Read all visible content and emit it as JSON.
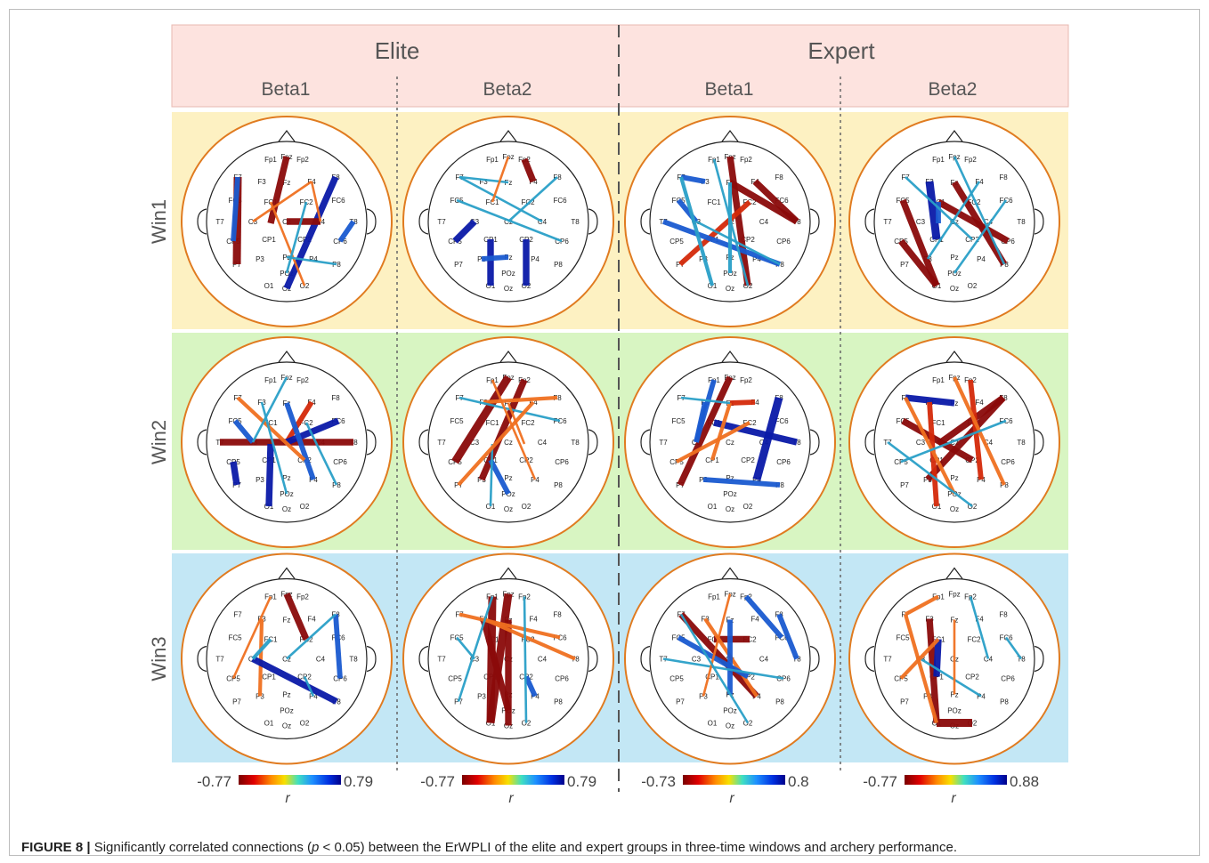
{
  "groups": [
    "Elite",
    "Expert"
  ],
  "bands": [
    "Beta1",
    "Beta2",
    "Beta1",
    "Beta2"
  ],
  "windows": [
    "Win1",
    "Win2",
    "Win3"
  ],
  "colors": {
    "header_bg": "#fde3df",
    "win1_bg": "#fdf1c2",
    "win2_bg": "#d8f5c2",
    "win3_bg": "#c3e7f5",
    "head_outline": "#e07b20",
    "strong_red": "#8b0a0a",
    "red": "#d42a0a",
    "orange": "#f07020",
    "cyan": "#2aa0c8",
    "blue": "#1a5ad0",
    "strong_blue": "#0a1aa8"
  },
  "electrode_labels": [
    "Fp1",
    "Fpz",
    "Fp2",
    "F7",
    "F3",
    "Fz",
    "F4",
    "F8",
    "FC5",
    "FC1",
    "FC2",
    "FC6",
    "T7",
    "C3",
    "Cz",
    "C4",
    "T8",
    "CP5",
    "CP1",
    "CP2",
    "CP6",
    "P7",
    "P3",
    "Pz",
    "P4",
    "P8",
    "POz",
    "O1",
    "Oz",
    "O2"
  ],
  "colorbars": [
    {
      "min": "-0.77",
      "max": "0.79",
      "label": "r"
    },
    {
      "min": "-0.77",
      "max": "0.79",
      "label": "r"
    },
    {
      "min": "-0.73",
      "max": "0.8",
      "label": "r"
    },
    {
      "min": "-0.77",
      "max": "0.88",
      "label": "r"
    }
  ],
  "caption": {
    "prefix": "FIGURE 8 |",
    "text_a": " Significantly correlated connections (",
    "p": "p",
    "text_b": " < 0.05) between the ErWPLI of the elite and expert groups in three-time windows and archery performance."
  },
  "connections": [
    [
      [
        [
          "F7",
          "P7",
          0,
          5
        ],
        [
          "Fpz",
          "C1",
          0,
          4
        ],
        [
          "F7",
          "CP5",
          1,
          3
        ],
        [
          "C3",
          "F4",
          2,
          1
        ],
        [
          "F8",
          "Oz",
          1,
          4
        ],
        [
          "T8",
          "CP6",
          1,
          3
        ],
        [
          "FC1",
          "O2",
          2,
          1
        ],
        [
          "C4",
          "Cz",
          0,
          4
        ],
        [
          "Pz",
          "P8",
          3,
          1
        ],
        [
          "FC2",
          "POz",
          3,
          1
        ],
        [
          "F4",
          "C4",
          2,
          1
        ]
      ],
      [
        [
          "Fp2",
          "F4",
          0,
          4
        ],
        [
          "F7",
          "C4",
          3,
          1
        ],
        [
          "F7",
          "Fz",
          3,
          1
        ],
        [
          "FC5",
          "CP6",
          3,
          1
        ],
        [
          "F8",
          "Cz",
          3,
          1
        ],
        [
          "CP5",
          "C3",
          1,
          4
        ],
        [
          "CP1",
          "O1",
          1,
          4
        ],
        [
          "P3",
          "Pz",
          1,
          3
        ],
        [
          "CP2",
          "O2",
          1,
          4
        ],
        [
          "Fpz",
          "FC1",
          2,
          1
        ]
      ],
      [
        [
          "Fpz",
          "O2",
          0,
          4
        ],
        [
          "F7",
          "F3",
          1,
          3
        ],
        [
          "T8",
          "Fz",
          0,
          4
        ],
        [
          "F4",
          "T8",
          0,
          4
        ],
        [
          "P7",
          "FC2",
          0,
          3
        ],
        [
          "T7",
          "P8",
          1,
          3
        ],
        [
          "FC5",
          "C3",
          1,
          3
        ],
        [
          "Fz",
          "POz",
          1,
          2
        ],
        [
          "F7",
          "O1",
          1,
          2
        ],
        [
          "Fp1",
          "O2",
          3,
          1
        ],
        [
          "C3",
          "P8",
          3,
          1
        ]
      ],
      [
        [
          "F3",
          "CP1",
          1,
          5
        ],
        [
          "FC1",
          "CP6",
          0,
          4
        ],
        [
          "Fz",
          "P8",
          0,
          4
        ],
        [
          "FC5",
          "O1",
          0,
          4
        ],
        [
          "CP5",
          "O1",
          0,
          4
        ],
        [
          "F4",
          "P3",
          3,
          1
        ],
        [
          "Fpz",
          "P8",
          3,
          1
        ],
        [
          "FC1",
          "C1",
          1,
          3
        ],
        [
          "FC6",
          "POz",
          3,
          1
        ],
        [
          "F7",
          "CP2",
          3,
          1
        ]
      ]
    ],
    [
      [
        [
          "T7",
          "T8",
          0,
          4
        ],
        [
          "F4",
          "Cz",
          0,
          3
        ],
        [
          "FC5",
          "C3",
          1,
          3
        ],
        [
          "CP5",
          "P7",
          1,
          4
        ],
        [
          "C1",
          "O1",
          1,
          4
        ],
        [
          "Cz",
          "FC6",
          1,
          4
        ],
        [
          "Fz",
          "P4",
          1,
          3
        ],
        [
          "F7",
          "CP2",
          2,
          2
        ],
        [
          "F3",
          "POz",
          3,
          1
        ],
        [
          "FC2",
          "P8",
          3,
          1
        ],
        [
          "Fpz",
          "C3",
          3,
          1
        ]
      ],
      [
        [
          "Fpz",
          "CP5",
          0,
          5
        ],
        [
          "Fp2",
          "P3",
          0,
          4
        ],
        [
          "F3",
          "F8",
          2,
          2
        ],
        [
          "F7",
          "FC6",
          3,
          1
        ],
        [
          "Fp1",
          "P4",
          2,
          1
        ],
        [
          "CP1",
          "POz",
          1,
          3
        ],
        [
          "C1",
          "O1",
          3,
          1
        ],
        [
          "F4",
          "P7",
          2,
          2
        ],
        [
          "Fz",
          "C2",
          2,
          1
        ]
      ],
      [
        [
          "Fpz",
          "P7",
          0,
          4
        ],
        [
          "F8",
          "P4",
          1,
          5
        ],
        [
          "FC1",
          "T8",
          1,
          4
        ],
        [
          "F3",
          "C3",
          1,
          3
        ],
        [
          "F4",
          "Fz",
          0,
          3
        ],
        [
          "FC2",
          "CP5",
          2,
          2
        ],
        [
          "Fp1",
          "C3",
          1,
          3
        ],
        [
          "P3",
          "P8",
          1,
          3
        ],
        [
          "Fz",
          "CP1",
          2,
          2
        ],
        [
          "F7",
          "Fz",
          3,
          1
        ]
      ],
      [
        [
          "F7",
          "Fz",
          1,
          4
        ],
        [
          "F8",
          "C1",
          0,
          4
        ],
        [
          "FC5",
          "CP2",
          0,
          4
        ],
        [
          "F8",
          "P3",
          0,
          4
        ],
        [
          "F3",
          "O1",
          0,
          3
        ],
        [
          "Fp2",
          "P4",
          0,
          3
        ],
        [
          "F7",
          "POz",
          2,
          2
        ],
        [
          "T7",
          "O2",
          3,
          1
        ],
        [
          "Fpz",
          "P8",
          2,
          2
        ],
        [
          "FC6",
          "CP5",
          3,
          1
        ]
      ]
    ],
    [
      [
        [
          "Fpz",
          "FC2",
          0,
          4
        ],
        [
          "F3",
          "P3",
          2,
          2
        ],
        [
          "F8",
          "CP6",
          1,
          3
        ],
        [
          "C3",
          "P8",
          1,
          4
        ],
        [
          "C3",
          "FC1",
          1,
          2
        ],
        [
          "Fp1",
          "CP5",
          2,
          1
        ],
        [
          "CP2",
          "P4",
          3,
          1
        ],
        [
          "F8",
          "Cz",
          3,
          1
        ]
      ],
      [
        [
          "Fp1",
          "O1",
          0,
          5
        ],
        [
          "Fpz",
          "O1",
          0,
          5
        ],
        [
          "F3",
          "POz",
          0,
          4
        ],
        [
          "Fz",
          "Oz",
          0,
          4
        ],
        [
          "F7",
          "FC6",
          2,
          2
        ],
        [
          "F3",
          "T8",
          2,
          2
        ],
        [
          "CP2",
          "P4",
          1,
          3
        ],
        [
          "FC5",
          "C3",
          3,
          1
        ],
        [
          "Fp2",
          "O2",
          3,
          1
        ],
        [
          "Fp1",
          "P7",
          3,
          1
        ]
      ],
      [
        [
          "F7",
          "P4",
          0,
          4
        ],
        [
          "FC1",
          "FC2",
          0,
          4
        ],
        [
          "F3",
          "P4",
          2,
          2
        ],
        [
          "Fp2",
          "FC6",
          1,
          3
        ],
        [
          "Fz",
          "Pz",
          1,
          3
        ],
        [
          "FC5",
          "CP2",
          1,
          3
        ],
        [
          "T7",
          "CP6",
          3,
          1
        ],
        [
          "F8",
          "T8",
          1,
          3
        ],
        [
          "Fpz",
          "P3",
          2,
          1
        ],
        [
          "F7",
          "O2",
          3,
          1
        ]
      ],
      [
        [
          "F3",
          "O1",
          0,
          4
        ],
        [
          "O1",
          "O2",
          0,
          5
        ],
        [
          "FC1",
          "CP1",
          1,
          4
        ],
        [
          "Fp1",
          "F7",
          2,
          2
        ],
        [
          "C3",
          "P4",
          3,
          1
        ],
        [
          "FC6",
          "T8",
          3,
          1
        ],
        [
          "FC1",
          "CP5",
          2,
          2
        ],
        [
          "Fz",
          "Pz",
          2,
          1
        ],
        [
          "F7",
          "O1",
          2,
          2
        ],
        [
          "Fp2",
          "C4",
          3,
          1
        ]
      ]
    ]
  ]
}
